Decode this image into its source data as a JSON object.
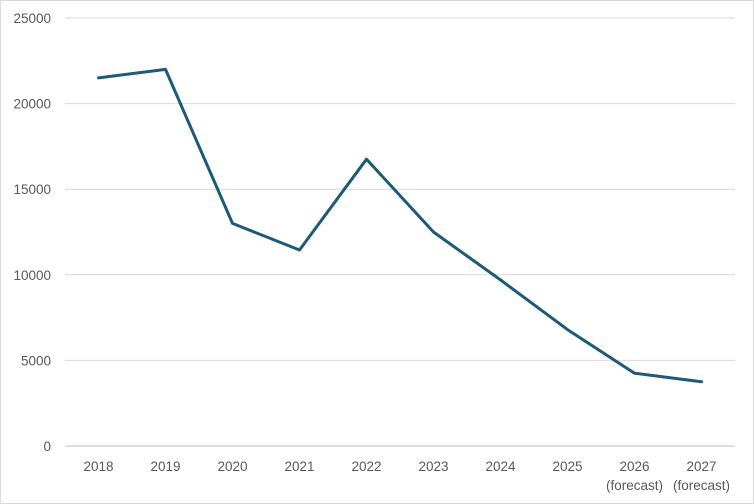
{
  "chart_data": {
    "type": "line",
    "title": "",
    "xlabel": "",
    "ylabel": "",
    "categories": [
      "2018",
      "2019",
      "2020",
      "2021",
      "2022",
      "2023",
      "2024",
      "2025",
      "2026\n(forecast)",
      "2027\n(forecast)"
    ],
    "series": [
      {
        "values": [
          21500,
          22000,
          13000,
          11450,
          16750,
          12500,
          9700,
          6800,
          4250,
          3750
        ]
      }
    ],
    "ylim": [
      0,
      25000
    ],
    "yticks": [
      0,
      5000,
      10000,
      15000,
      20000,
      25000
    ],
    "grid": true,
    "legend": "none",
    "colors": {
      "line": "#1d5a78",
      "grid": "#d9d9d9",
      "axis": "#bfbfbf",
      "text": "#595959"
    }
  }
}
